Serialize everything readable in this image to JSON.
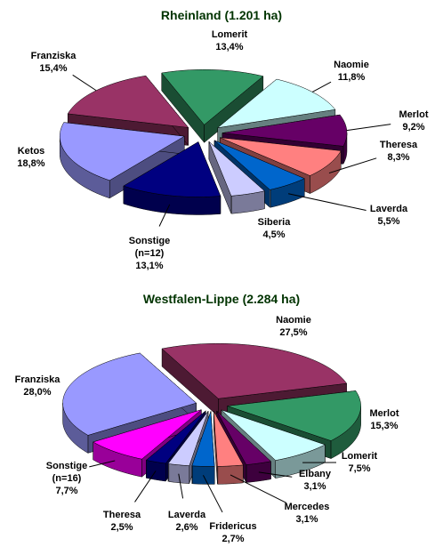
{
  "chart_data": [
    {
      "type": "pie",
      "title": "Rheinland (1.201 ha)",
      "categories": [
        "Lomerit",
        "Naomie",
        "Merlot",
        "Theresa",
        "Laverda",
        "Siberia",
        "Sonstige (n=12)",
        "Ketos",
        "Franziska"
      ],
      "values": [
        13.4,
        11.8,
        9.2,
        8.3,
        5.5,
        4.5,
        13.1,
        18.8,
        15.4
      ],
      "value_labels": [
        "13,4%",
        "11,8%",
        "9,2%",
        "8,3%",
        "5,5%",
        "4,5%",
        "13,1%",
        "18,8%",
        "15,4%"
      ],
      "colors": [
        "#339966",
        "#ccffff",
        "#660066",
        "#ff8080",
        "#0066cc",
        "#ccccff",
        "#000080",
        "#9999ff",
        "#993366"
      ]
    },
    {
      "type": "pie",
      "title": "Westfalen-Lippe (2.284 ha)",
      "categories": [
        "Naomie",
        "Merlot",
        "Lomerit",
        "Elbany",
        "Mercedes",
        "Fridericus",
        "Laverda",
        "Theresa",
        "Sonstige (n=16)",
        "Franziska"
      ],
      "values": [
        27.5,
        15.3,
        7.5,
        3.1,
        3.1,
        2.7,
        2.6,
        2.5,
        7.7,
        28.0
      ],
      "value_labels": [
        "27,5%",
        "15,3%",
        "7,5%",
        "3,1%",
        "3,1%",
        "2,7%",
        "2,6%",
        "2,5%",
        "7,7%",
        "28,0%"
      ],
      "colors": [
        "#993366",
        "#339966",
        "#ccffff",
        "#660066",
        "#ff8080",
        "#0066cc",
        "#ccccff",
        "#000080",
        "#ff00ff",
        "#9999ff"
      ]
    }
  ]
}
